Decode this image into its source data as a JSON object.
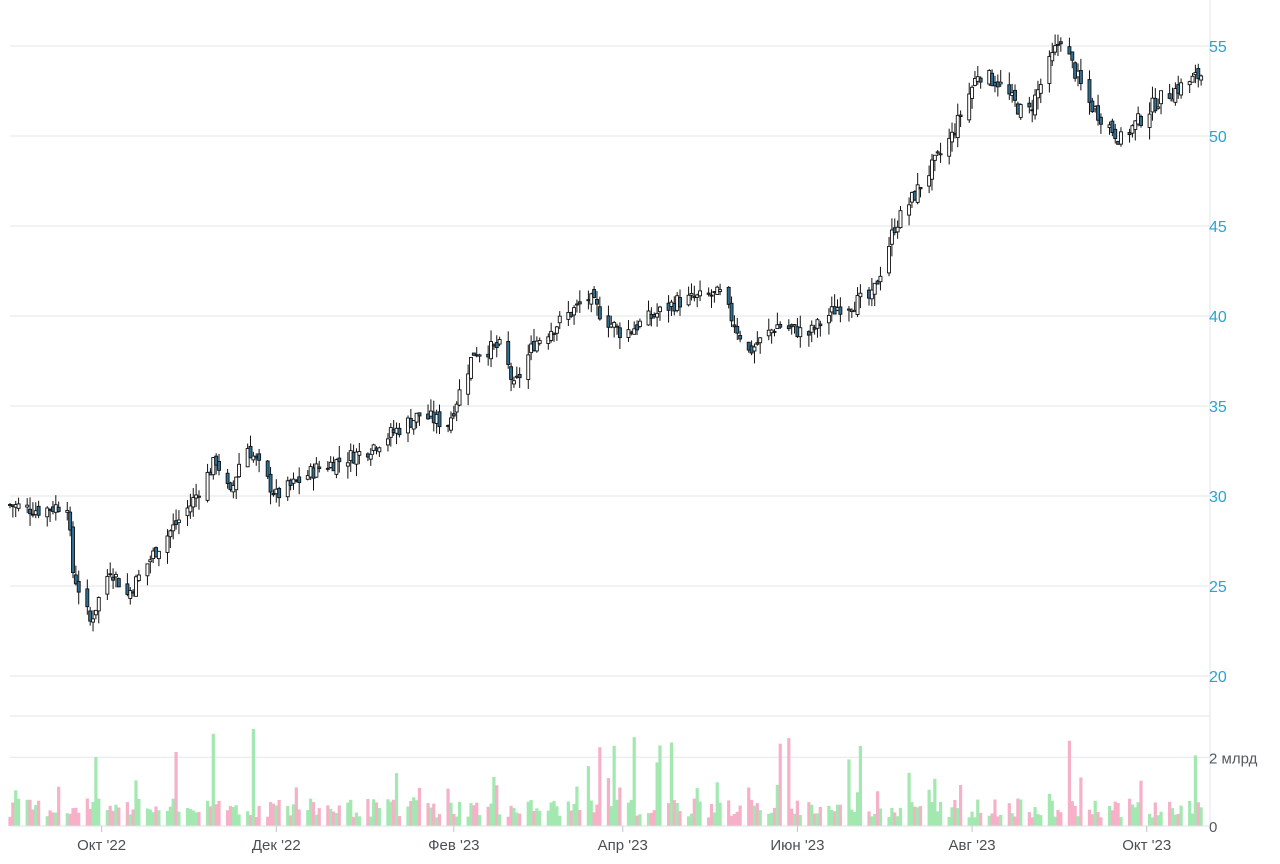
{
  "chart_data": [
    {
      "type": "candlestick",
      "title": "",
      "xlabel": "",
      "ylabel": "",
      "ylim": [
        20,
        57
      ],
      "y_ticks": [
        "20",
        "25",
        "30",
        "35",
        "40",
        "45",
        "50",
        "55"
      ],
      "grid": true,
      "legend": "none",
      "x_range": [
        "2022-08-30",
        "2023-10-21"
      ],
      "x_tick_labels": [
        {
          "label": "Окт '22",
          "date": "2022-10-01"
        },
        {
          "label": "Дек '22",
          "date": "2022-12-01"
        },
        {
          "label": "Фев '23",
          "date": "2023-02-01"
        },
        {
          "label": "Апр '23",
          "date": "2023-04-01"
        },
        {
          "label": "Июн '23",
          "date": "2023-06-01"
        },
        {
          "label": "Авг '23",
          "date": "2023-08-01"
        },
        {
          "label": "Окт '23",
          "date": "2023-10-01"
        }
      ],
      "approx_close_path": [
        [
          "2022-08-30",
          29.5
        ],
        [
          "2022-09-10",
          29.2
        ],
        [
          "2022-09-19",
          29.6
        ],
        [
          "2022-09-21",
          25.8
        ],
        [
          "2022-09-27",
          23.0
        ],
        [
          "2022-10-04",
          26.0
        ],
        [
          "2022-10-10",
          24.5
        ],
        [
          "2022-10-20",
          27.0
        ],
        [
          "2022-11-01",
          29.5
        ],
        [
          "2022-11-10",
          32.0
        ],
        [
          "2022-11-15",
          30.0
        ],
        [
          "2022-11-20",
          33.0
        ],
        [
          "2022-12-01",
          30.0
        ],
        [
          "2022-12-15",
          31.5
        ],
        [
          "2023-01-01",
          32.5
        ],
        [
          "2023-01-20",
          34.5
        ],
        [
          "2023-01-30",
          34.0
        ],
        [
          "2023-02-08",
          38.0
        ],
        [
          "2023-02-18",
          38.3
        ],
        [
          "2023-02-22",
          36.0
        ],
        [
          "2023-03-01",
          38.5
        ],
        [
          "2023-03-20",
          41.0
        ],
        [
          "2023-03-25",
          40.0
        ],
        [
          "2023-04-01",
          39.0
        ],
        [
          "2023-04-20",
          40.8
        ],
        [
          "2023-05-05",
          41.2
        ],
        [
          "2023-05-15",
          38.0
        ],
        [
          "2023-05-25",
          39.5
        ],
        [
          "2023-06-05",
          39.0
        ],
        [
          "2023-06-15",
          40.5
        ],
        [
          "2023-06-27",
          41.0
        ],
        [
          "2023-07-05",
          45.0
        ],
        [
          "2023-07-15",
          47.5
        ],
        [
          "2023-07-25",
          50.0
        ],
        [
          "2023-08-03",
          53.5
        ],
        [
          "2023-08-10",
          53.0
        ],
        [
          "2023-08-20",
          51.0
        ],
        [
          "2023-09-01",
          55.5
        ],
        [
          "2023-09-10",
          52.0
        ],
        [
          "2023-09-22",
          49.8
        ],
        [
          "2023-10-05",
          52.0
        ],
        [
          "2023-10-21",
          53.5
        ]
      ]
    },
    {
      "type": "bar",
      "title": "",
      "xlabel": "",
      "ylabel": "",
      "ylim": [
        0,
        3200000000
      ],
      "y_ticks": [
        "0",
        "2 млрд"
      ],
      "grid": true,
      "legend": "none",
      "series": [
        {
          "color_up": "#a2e8b0",
          "color_down": "#f6b0c8"
        }
      ]
    }
  ]
}
